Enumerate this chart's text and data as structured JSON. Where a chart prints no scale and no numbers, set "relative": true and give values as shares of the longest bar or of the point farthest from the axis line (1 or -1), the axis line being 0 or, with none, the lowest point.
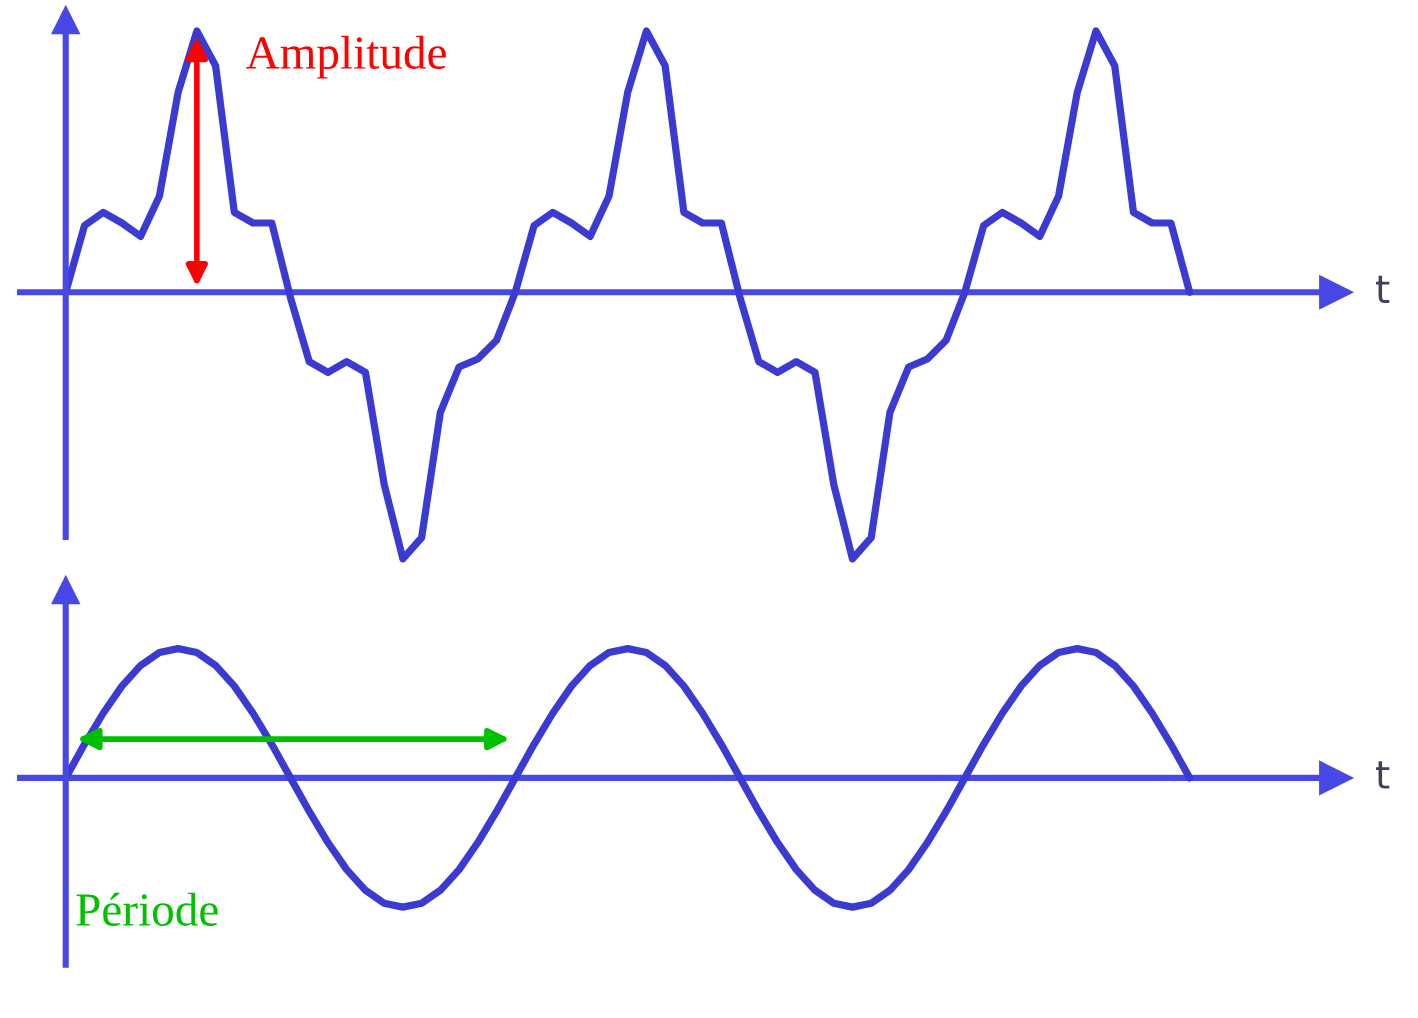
{
  "chart_data": [
    {
      "type": "line",
      "relative": true,
      "xlabel": "t",
      "annotations": [
        "Amplitude"
      ],
      "ref_lines": [
        {
          "axis": "y",
          "value": 0,
          "color": "#4848e6"
        }
      ],
      "categories": [
        null,
        null,
        null,
        null,
        null,
        null,
        null,
        null,
        null,
        null,
        null,
        null,
        null,
        null,
        null,
        null,
        null,
        null,
        null,
        null,
        null,
        null,
        null,
        null,
        null,
        null,
        null,
        null,
        null,
        null,
        null,
        null,
        null,
        null,
        null,
        null,
        null,
        null,
        null,
        null,
        null,
        null,
        null,
        null,
        null,
        null,
        null,
        null,
        null,
        null,
        null,
        null,
        null,
        null,
        null,
        null,
        null,
        null,
        null,
        null,
        null
      ],
      "series": [
        {
          "color": "#3b3bd1",
          "values": [
            0,
            0.25,
            0.3,
            0.26,
            0.21,
            0.36,
            0.75,
            0.98,
            0.85,
            0.3,
            0.26,
            0.26,
            -0.02,
            -0.26,
            -0.3,
            -0.26,
            -0.3,
            -0.72,
            -1.0,
            -0.92,
            -0.45,
            -0.28,
            -0.25,
            -0.18,
            0,
            0.25,
            0.3,
            0.26,
            0.21,
            0.36,
            0.75,
            0.98,
            0.85,
            0.3,
            0.26,
            0.26,
            -0.02,
            -0.26,
            -0.3,
            -0.26,
            -0.3,
            -0.72,
            -1.0,
            -0.92,
            -0.45,
            -0.28,
            -0.25,
            -0.18,
            0,
            0.25,
            0.3,
            0.26,
            0.21,
            0.36,
            0.75,
            0.98,
            0.85,
            0.3,
            0.26,
            0.26,
            0
          ]
        }
      ]
    },
    {
      "type": "line",
      "relative": true,
      "xlabel": "t",
      "annotations": [
        "Période"
      ],
      "ref_lines": [
        {
          "axis": "y",
          "value": 0,
          "color": "#4848e6"
        }
      ],
      "categories": [
        null,
        null,
        null,
        null,
        null,
        null,
        null,
        null,
        null,
        null,
        null,
        null,
        null,
        null,
        null,
        null,
        null,
        null,
        null,
        null,
        null,
        null,
        null,
        null,
        null,
        null,
        null,
        null,
        null,
        null,
        null,
        null,
        null,
        null,
        null,
        null,
        null,
        null,
        null,
        null,
        null,
        null,
        null,
        null,
        null,
        null,
        null,
        null,
        null,
        null,
        null,
        null,
        null,
        null,
        null,
        null,
        null,
        null,
        null,
        null,
        null
      ],
      "series": [
        {
          "color": "#3b3bd1",
          "values": [
            0,
            0.26,
            0.5,
            0.71,
            0.87,
            0.97,
            1,
            0.97,
            0.87,
            0.71,
            0.5,
            0.26,
            0,
            -0.26,
            -0.5,
            -0.71,
            -0.87,
            -0.97,
            -1,
            -0.97,
            -0.87,
            -0.71,
            -0.5,
            -0.26,
            0,
            0.26,
            0.5,
            0.71,
            0.87,
            0.97,
            1,
            0.97,
            0.87,
            0.71,
            0.5,
            0.26,
            0,
            -0.26,
            -0.5,
            -0.71,
            -0.87,
            -0.97,
            -1,
            -0.97,
            -0.87,
            -0.71,
            -0.5,
            -0.26,
            0,
            0.26,
            0.5,
            0.71,
            0.87,
            0.97,
            1,
            0.97,
            0.87,
            0.71,
            0.5,
            0.26,
            0
          ]
        }
      ]
    }
  ]
}
